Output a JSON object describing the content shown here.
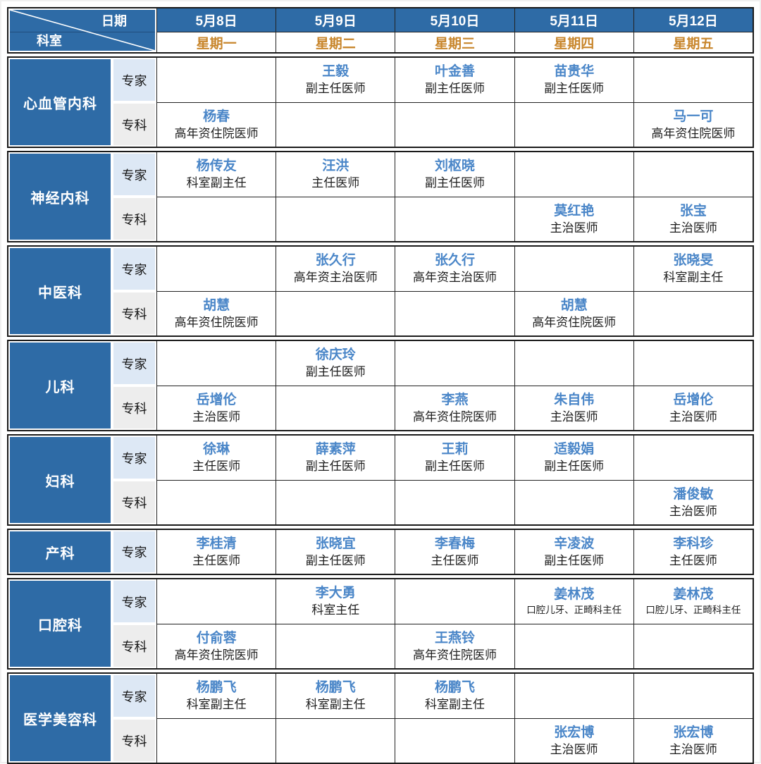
{
  "colors": {
    "header_blue": "#2e6ba6",
    "doctor_name_blue": "#4a86c8",
    "weekday_orange": "#c8862c",
    "expert_row_bg": "#dde8f5",
    "specialist_row_bg": "#ededed"
  },
  "header": {
    "date_label": "日期",
    "dept_label": "科室",
    "days": [
      {
        "date": "5月8日",
        "weekday": "星期一"
      },
      {
        "date": "5月9日",
        "weekday": "星期二"
      },
      {
        "date": "5月10日",
        "weekday": "星期三"
      },
      {
        "date": "5月11日",
        "weekday": "星期四"
      },
      {
        "date": "5月12日",
        "weekday": "星期五"
      }
    ]
  },
  "labels": {
    "expert": "专家",
    "specialist": "专科"
  },
  "departments": [
    {
      "name": "心血管内科",
      "rows": [
        {
          "type": "专家",
          "cells": [
            null,
            {
              "name": "王毅",
              "title": "副主任医师"
            },
            {
              "name": "叶金善",
              "title": "副主任医师"
            },
            {
              "name": "苗贵华",
              "title": "副主任医师"
            },
            null
          ]
        },
        {
          "type": "专科",
          "cells": [
            {
              "name": "杨春",
              "title": "高年资住院医师"
            },
            null,
            null,
            null,
            {
              "name": "马一可",
              "title": "高年资住院医师"
            }
          ]
        }
      ]
    },
    {
      "name": "神经内科",
      "rows": [
        {
          "type": "专家",
          "cells": [
            {
              "name": "杨传友",
              "title": "科室副主任"
            },
            {
              "name": "汪洪",
              "title": "主任医师"
            },
            {
              "name": "刘枢晓",
              "title": "副主任医师"
            },
            null,
            null
          ]
        },
        {
          "type": "专科",
          "cells": [
            null,
            null,
            null,
            {
              "name": "莫红艳",
              "title": "主治医师"
            },
            {
              "name": "张宝",
              "title": "主治医师"
            }
          ]
        }
      ]
    },
    {
      "name": "中医科",
      "rows": [
        {
          "type": "专家",
          "cells": [
            null,
            {
              "name": "张久行",
              "title": "高年资主治医师"
            },
            {
              "name": "张久行",
              "title": "高年资主治医师"
            },
            null,
            {
              "name": "张晓旻",
              "title": "科室副主任"
            }
          ]
        },
        {
          "type": "专科",
          "cells": [
            {
              "name": "胡慧",
              "title": "高年资住院医师"
            },
            null,
            null,
            {
              "name": "胡慧",
              "title": "高年资住院医师"
            },
            null
          ]
        }
      ]
    },
    {
      "name": "儿科",
      "rows": [
        {
          "type": "专家",
          "cells": [
            null,
            {
              "name": "徐庆玲",
              "title": "副主任医师"
            },
            null,
            null,
            null
          ]
        },
        {
          "type": "专科",
          "cells": [
            {
              "name": "岳增伦",
              "title": "主治医师"
            },
            null,
            {
              "name": "李燕",
              "title": "高年资住院医师"
            },
            {
              "name": "朱自伟",
              "title": "主治医师"
            },
            {
              "name": "岳增伦",
              "title": "主治医师"
            }
          ]
        }
      ]
    },
    {
      "name": "妇科",
      "rows": [
        {
          "type": "专家",
          "cells": [
            {
              "name": "徐琳",
              "title": "主任医师"
            },
            {
              "name": "薛素萍",
              "title": "副主任医师"
            },
            {
              "name": "王莉",
              "title": "副主任医师"
            },
            {
              "name": "适毅娟",
              "title": "副主任医师"
            },
            null
          ]
        },
        {
          "type": "专科",
          "cells": [
            null,
            null,
            null,
            null,
            {
              "name": "潘俊敏",
              "title": "主治医师"
            }
          ]
        }
      ]
    },
    {
      "name": "产科",
      "rows": [
        {
          "type": "专家",
          "cells": [
            {
              "name": "李桂清",
              "title": "主任医师"
            },
            {
              "name": "张晓宜",
              "title": "副主任医师"
            },
            {
              "name": "李春梅",
              "title": "主任医师"
            },
            {
              "name": "辛凌波",
              "title": "副主任医师"
            },
            {
              "name": "李科珍",
              "title": "主任医师"
            }
          ]
        }
      ]
    },
    {
      "name": "口腔科",
      "rows": [
        {
          "type": "专家",
          "cells": [
            null,
            {
              "name": "李大勇",
              "title": "科室主任"
            },
            null,
            {
              "name": "姜林茂",
              "title": "口腔儿牙、正畸科主任"
            },
            {
              "name": "姜林茂",
              "title": "口腔儿牙、正畸科主任"
            }
          ]
        },
        {
          "type": "专科",
          "cells": [
            {
              "name": "付俞蓉",
              "title": "高年资住院医师"
            },
            null,
            {
              "name": "王燕铃",
              "title": "高年资住院医师"
            },
            null,
            null
          ]
        }
      ]
    },
    {
      "name": "医学美容科",
      "rows": [
        {
          "type": "专家",
          "cells": [
            {
              "name": "杨鹏飞",
              "title": "科室副主任"
            },
            {
              "name": "杨鹏飞",
              "title": "科室副主任"
            },
            {
              "name": "杨鹏飞",
              "title": "科室副主任"
            },
            null,
            null
          ]
        },
        {
          "type": "专科",
          "cells": [
            null,
            null,
            null,
            {
              "name": "张宏博",
              "title": "主治医师"
            },
            {
              "name": "张宏博",
              "title": "主治医师"
            }
          ]
        }
      ]
    }
  ]
}
